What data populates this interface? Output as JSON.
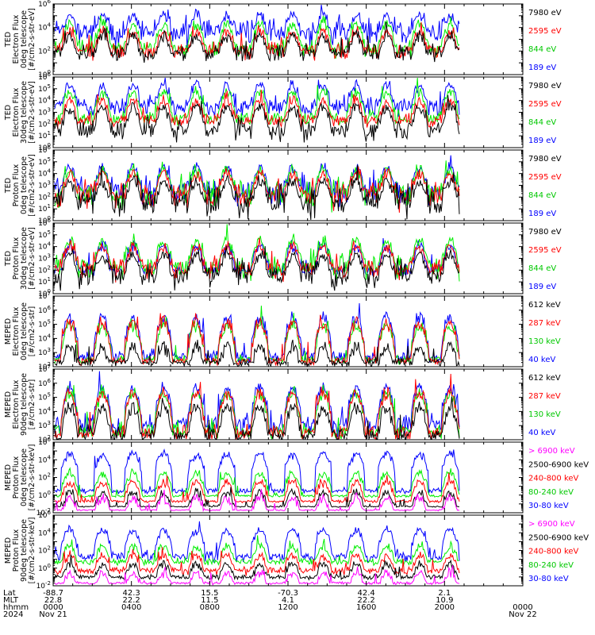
{
  "colors": {
    "ch0": "#0000ff",
    "ch1": "#00ee00",
    "ch2": "#ff0000",
    "ch3": "#000000",
    "ch4": "#ff00ff"
  },
  "chart_data": [
    {
      "type": "line",
      "ylabel": [
        "TED",
        "Electron Flux",
        "0deg telescope",
        "[#/cm2-s-str-eV]"
      ],
      "ylog": true,
      "ylim": [
        1,
        1000000
      ],
      "yticks": [
        1,
        100,
        10000,
        1000000
      ],
      "legend": [
        {
          "label": "7980 eV",
          "color": "#000000"
        },
        {
          "label": "2595 eV",
          "color": "#ff0000"
        },
        {
          "label": "844 eV",
          "color": "#00c800"
        },
        {
          "label": "189 eV",
          "color": "#0000ff"
        }
      ],
      "series": [
        {
          "name": "189 eV",
          "color": "#0000ff",
          "base": 5000,
          "spike": 100000,
          "noise": 0.8
        },
        {
          "name": "844 eV",
          "color": "#00ee00",
          "base": 150,
          "spike": 20000,
          "noise": 0.5
        },
        {
          "name": "2595 eV",
          "color": "#ff0000",
          "base": 100,
          "spike": 5000,
          "noise": 0.5
        },
        {
          "name": "7980 eV",
          "color": "#000000",
          "base": 60,
          "spike": 2000,
          "noise": 0.5
        }
      ]
    },
    {
      "type": "line",
      "ylabel": [
        "TED",
        "Electron Flux",
        "30deg telescope",
        "[#/cm2-s-str-eV]"
      ],
      "ylog": true,
      "ylim": [
        1,
        1000000
      ],
      "yticks": [
        1,
        10,
        100,
        1000,
        10000,
        100000,
        1000000
      ],
      "legend": [
        {
          "label": "7980 eV",
          "color": "#000000"
        },
        {
          "label": "2595 eV",
          "color": "#ff0000"
        },
        {
          "label": "844 eV",
          "color": "#00c800"
        },
        {
          "label": "189 eV",
          "color": "#0000ff"
        }
      ],
      "series": [
        {
          "name": "189 eV",
          "color": "#0000ff",
          "base": 3000,
          "spike": 200000,
          "noise": 0.6
        },
        {
          "name": "844 eV",
          "color": "#00ee00",
          "base": 300,
          "spike": 50000,
          "noise": 0.4
        },
        {
          "name": "2595 eV",
          "color": "#ff0000",
          "base": 200,
          "spike": 10000,
          "noise": 0.4
        },
        {
          "name": "7980 eV",
          "color": "#000000",
          "base": 30,
          "spike": 3000,
          "noise": 0.6
        }
      ]
    },
    {
      "type": "line",
      "ylabel": [
        "TED",
        "Proton Flux",
        "0deg telescope",
        "[#/cm2-s-str-eV]"
      ],
      "ylog": true,
      "ylim": [
        1,
        1000000
      ],
      "yticks": [
        1,
        10,
        100,
        1000,
        10000,
        100000,
        1000000
      ],
      "legend": [
        {
          "label": "7980 eV",
          "color": "#000000"
        },
        {
          "label": "2595 eV",
          "color": "#ff0000"
        },
        {
          "label": "844 eV",
          "color": "#00c800"
        },
        {
          "label": "189 eV",
          "color": "#0000ff"
        }
      ],
      "series": [
        {
          "name": "189 eV",
          "color": "#0000ff",
          "base": 300,
          "spike": 30000,
          "noise": 0.8
        },
        {
          "name": "844 eV",
          "color": "#00ee00",
          "base": 200,
          "spike": 20000,
          "noise": 0.8
        },
        {
          "name": "2595 eV",
          "color": "#ff0000",
          "base": 150,
          "spike": 10000,
          "noise": 0.8
        },
        {
          "name": "7980 eV",
          "color": "#000000",
          "base": 40,
          "spike": 2000,
          "noise": 1.0
        }
      ]
    },
    {
      "type": "line",
      "ylabel": [
        "TED",
        "Proton Flux",
        "30deg telescope",
        "[#/cm2-s-str-eV]"
      ],
      "ylog": true,
      "ylim": [
        1,
        1000000
      ],
      "yticks": [
        1,
        10,
        100,
        1000,
        10000,
        100000,
        1000000
      ],
      "legend": [
        {
          "label": "7980 eV",
          "color": "#000000"
        },
        {
          "label": "2595 eV",
          "color": "#ff0000"
        },
        {
          "label": "844 eV",
          "color": "#00c800"
        },
        {
          "label": "189 eV",
          "color": "#0000ff"
        }
      ],
      "series": [
        {
          "name": "189 eV",
          "color": "#0000ff",
          "base": 100,
          "spike": 10000,
          "noise": 0.3
        },
        {
          "name": "844 eV",
          "color": "#00ee00",
          "base": 150,
          "spike": 30000,
          "noise": 0.7
        },
        {
          "name": "2595 eV",
          "color": "#ff0000",
          "base": 120,
          "spike": 10000,
          "noise": 0.6
        },
        {
          "name": "7980 eV",
          "color": "#000000",
          "base": 40,
          "spike": 2000,
          "noise": 0.8
        }
      ]
    },
    {
      "type": "line",
      "ylabel": [
        "MEPED",
        "Electron Flux",
        "0deg telescope",
        "[#/cm2-s-str]"
      ],
      "ylog": true,
      "ylim": [
        100,
        10000000
      ],
      "yticks": [
        100,
        1000,
        10000,
        100000,
        1000000,
        10000000
      ],
      "legend": [
        {
          "label": "612 keV",
          "color": "#000000"
        },
        {
          "label": "287 keV",
          "color": "#ff0000"
        },
        {
          "label": "130 keV",
          "color": "#00c800"
        },
        {
          "label": "40 keV",
          "color": "#0000ff"
        }
      ],
      "series": [
        {
          "name": "40 keV",
          "color": "#0000ff",
          "base": 500,
          "spike": 300000,
          "noise": 0.3
        },
        {
          "name": "130 keV",
          "color": "#00ee00",
          "base": 300,
          "spike": 100000,
          "noise": 0.2
        },
        {
          "name": "287 keV",
          "color": "#ff0000",
          "base": 250,
          "spike": 150000,
          "noise": 0.2
        },
        {
          "name": "612 keV",
          "color": "#000000",
          "base": 200,
          "spike": 3000,
          "noise": 0.2
        }
      ]
    },
    {
      "type": "line",
      "ylabel": [
        "MEPED",
        "Electron Flux",
        "90deg telescope",
        "[#/cm2-s-str]"
      ],
      "ylog": true,
      "ylim": [
        100,
        10000000
      ],
      "yticks": [
        100,
        1000,
        10000,
        100000,
        1000000,
        10000000
      ],
      "legend": [
        {
          "label": "612 keV",
          "color": "#000000"
        },
        {
          "label": "287 keV",
          "color": "#ff0000"
        },
        {
          "label": "130 keV",
          "color": "#00c800"
        },
        {
          "label": "40 keV",
          "color": "#0000ff"
        }
      ],
      "series": [
        {
          "name": "40 keV",
          "color": "#0000ff",
          "base": 1000,
          "spike": 500000,
          "noise": 0.5
        },
        {
          "name": "130 keV",
          "color": "#00ee00",
          "base": 400,
          "spike": 200000,
          "noise": 0.4
        },
        {
          "name": "287 keV",
          "color": "#ff0000",
          "base": 300,
          "spike": 200000,
          "noise": 0.4
        },
        {
          "name": "612 keV",
          "color": "#000000",
          "base": 200,
          "spike": 20000,
          "noise": 0.4
        }
      ]
    },
    {
      "type": "line",
      "ylabel": [
        "MEPED",
        "Proton Flux",
        "0deg telescope",
        "[#/cm2-s-str-keV]"
      ],
      "ylog": true,
      "ylim": [
        0.01,
        1000000
      ],
      "yticks": [
        0.01,
        1,
        100,
        10000,
        1000000
      ],
      "legend": [
        {
          "label": "> 6900 keV",
          "color": "#ff00ff"
        },
        {
          "label": "2500-6900 keV",
          "color": "#000000"
        },
        {
          "label": "240-800 keV",
          "color": "#ff0000"
        },
        {
          "label": "80-240 keV",
          "color": "#00c800"
        },
        {
          "label": "30-80 keV",
          "color": "#0000ff"
        }
      ],
      "series": [
        {
          "name": "30-80 keV",
          "color": "#0000ff",
          "base": 3,
          "spike": 50000,
          "noise": 0.2
        },
        {
          "name": "80-240 keV",
          "color": "#00ee00",
          "base": 0.8,
          "spike": 300,
          "noise": 0.1
        },
        {
          "name": "240-800 keV",
          "color": "#ff0000",
          "base": 0.2,
          "spike": 30,
          "noise": 0.1
        },
        {
          "name": "2500-6900 keV",
          "color": "#000000",
          "base": 0.05,
          "spike": 2,
          "noise": 0.05
        },
        {
          "name": "> 6900 keV",
          "color": "#ff00ff",
          "base": 0.02,
          "spike": 0.5,
          "noise": 0.05
        }
      ]
    },
    {
      "type": "line",
      "ylabel": [
        "MEPED",
        "Proton Flux",
        "90deg telescope",
        "[#/cm2-s-str-keV]"
      ],
      "ylog": true,
      "ylim": [
        0.01,
        1000000
      ],
      "yticks": [
        0.01,
        1,
        100,
        10000,
        1000000
      ],
      "legend": [
        {
          "label": "> 6900 keV",
          "color": "#ff00ff"
        },
        {
          "label": "2500-6900 keV",
          "color": "#000000"
        },
        {
          "label": "240-800 keV",
          "color": "#ff0000"
        },
        {
          "label": "80-240 keV",
          "color": "#00c800"
        },
        {
          "label": "30-80 keV",
          "color": "#0000ff"
        }
      ],
      "series": [
        {
          "name": "30-80 keV",
          "color": "#0000ff",
          "base": 20,
          "spike": 20000,
          "noise": 0.4
        },
        {
          "name": "80-240 keV",
          "color": "#00ee00",
          "base": 5,
          "spike": 300,
          "noise": 0.3
        },
        {
          "name": "240-800 keV",
          "color": "#ff0000",
          "base": 0.5,
          "spike": 30,
          "noise": 0.3
        },
        {
          "name": "2500-6900 keV",
          "color": "#000000",
          "base": 0.1,
          "spike": 3,
          "noise": 0.2
        },
        {
          "name": "> 6900 keV",
          "color": "#ff00ff",
          "base": 0.02,
          "spike": 0.3,
          "noise": 0.1
        }
      ]
    }
  ],
  "orbit_spikes": [
    0.035,
    0.105,
    0.17,
    0.235,
    0.305,
    0.37,
    0.44,
    0.51,
    0.575,
    0.645,
    0.71,
    0.78,
    0.845,
    0.915,
    0.98
  ],
  "xaxis": {
    "row_labels": [
      "Lat",
      "MLT",
      "hhmm",
      "2024"
    ],
    "xlim_hours": [
      0,
      24
    ],
    "data_end_hours": 20.8,
    "ticks": [
      {
        "hours": 0,
        "lat": "-88.7",
        "mlt": "22.8",
        "hhmm": "0000",
        "date": "Nov 21"
      },
      {
        "hours": 4,
        "lat": "42.3",
        "mlt": "22.2",
        "hhmm": "0400",
        "date": ""
      },
      {
        "hours": 8,
        "lat": "15.5",
        "mlt": "11.5",
        "hhmm": "0800",
        "date": ""
      },
      {
        "hours": 12,
        "lat": "-70.3",
        "mlt": "4.1",
        "hhmm": "1200",
        "date": ""
      },
      {
        "hours": 16,
        "lat": "42.4",
        "mlt": "22.2",
        "hhmm": "1600",
        "date": ""
      },
      {
        "hours": 20,
        "lat": "2.1",
        "mlt": "10.9",
        "hhmm": "2000",
        "date": ""
      },
      {
        "hours": 24,
        "lat": "",
        "mlt": "",
        "hhmm": "0000",
        "date": "Nov 22"
      }
    ]
  }
}
